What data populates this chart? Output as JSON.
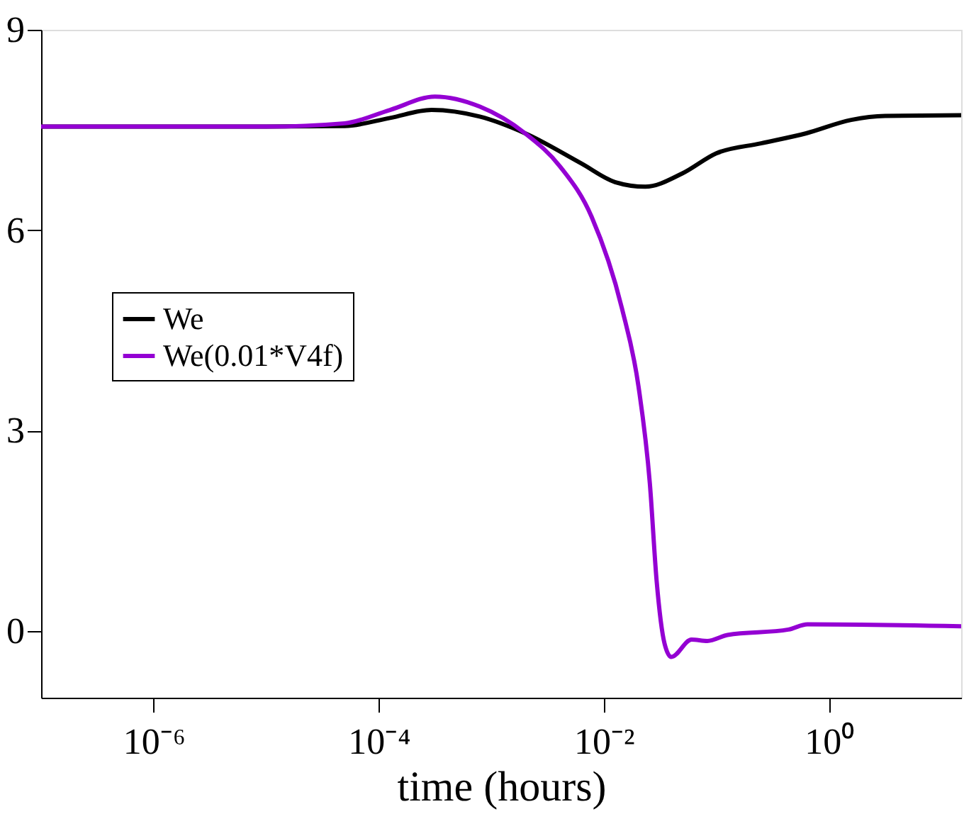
{
  "chart_data": {
    "type": "line",
    "xlabel": "time (hours)",
    "log": "x",
    "xlim": [
      1e-07,
      15
    ],
    "xticks": [
      {
        "value": 1e-06,
        "label": "10⁻⁶"
      },
      {
        "value": 0.0001,
        "label": "10⁻⁴"
      },
      {
        "value": 0.01,
        "label": "10⁻²"
      },
      {
        "value": 1,
        "label": "10⁰"
      }
    ],
    "ylim": [
      -1,
      9
    ],
    "yticks": [
      0,
      3,
      6,
      9
    ],
    "grid": false,
    "legend": "left",
    "marker": "none",
    "line_style": "solid",
    "series": [
      {
        "name": "We",
        "color": "#000000",
        "x": [
          1e-07,
          1e-05,
          5e-05,
          0.000126,
          0.000295,
          0.00079,
          0.002,
          0.0063,
          0.0126,
          0.0234,
          0.05,
          0.1,
          0.25,
          0.63,
          1.58,
          3.16,
          15
        ],
        "values": [
          7.55,
          7.55,
          7.56,
          7.68,
          7.8,
          7.7,
          7.45,
          7.0,
          6.72,
          6.65,
          6.85,
          7.15,
          7.3,
          7.45,
          7.65,
          7.71,
          7.72
        ]
      },
      {
        "name": "We(0.01*V4f)",
        "color": "#9400d3",
        "x": [
          1e-07,
          1e-05,
          5e-05,
          0.000126,
          0.000316,
          0.00079,
          0.002,
          0.0041,
          0.0078,
          0.0145,
          0.0204,
          0.0257,
          0.0295,
          0.0347,
          0.0398,
          0.0603,
          0.0832,
          0.126,
          0.437,
          0.646,
          15
        ],
        "values": [
          7.55,
          7.55,
          7.6,
          7.8,
          8.0,
          7.85,
          7.45,
          6.95,
          6.2,
          4.83,
          3.65,
          2.2,
          0.75,
          -0.19,
          -0.39,
          -0.13,
          -0.15,
          -0.06,
          0.02,
          0.1,
          0.07
        ]
      }
    ]
  }
}
